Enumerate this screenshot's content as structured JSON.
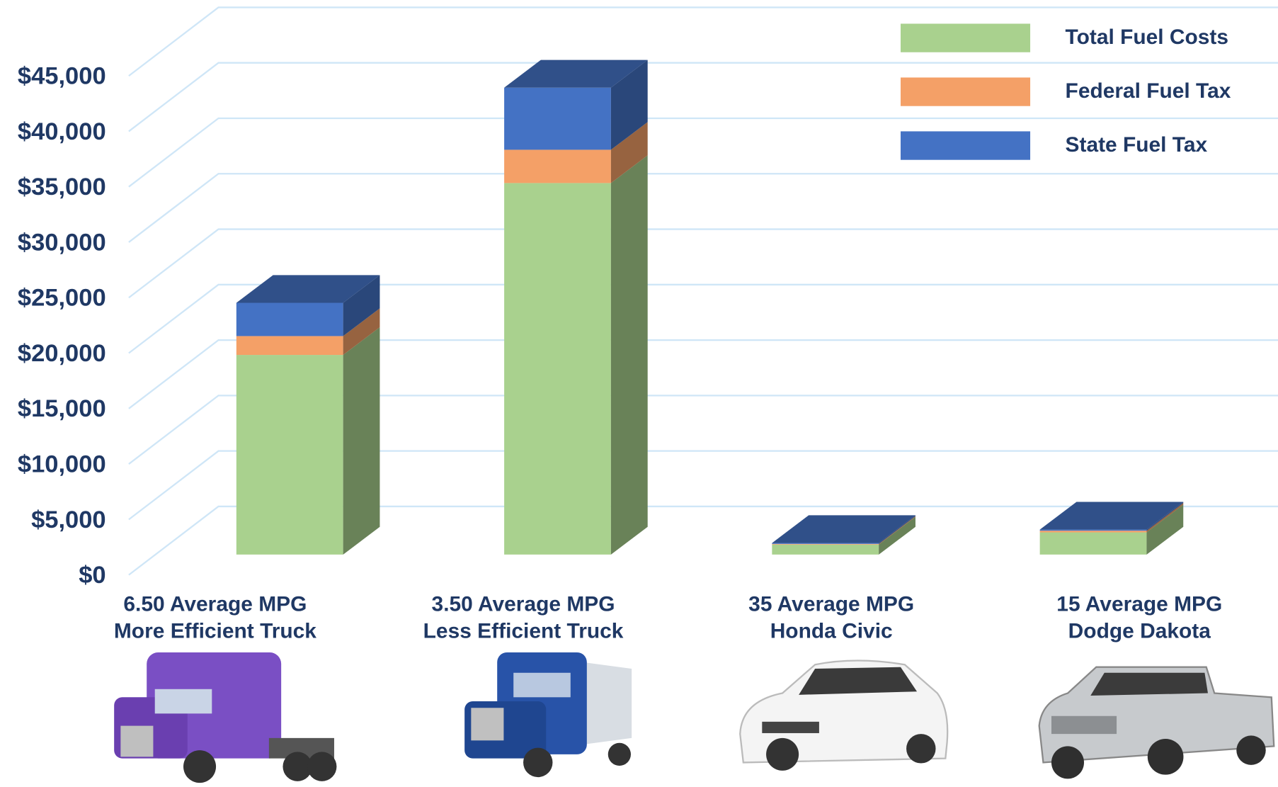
{
  "chart_data": {
    "type": "bar3d_stacked",
    "categories": [
      "6.50 Average MPG\nMore Efficient Truck",
      "3.50 Average MPG\nLess Efficient Truck",
      "35 Average MPG\nHonda Civic",
      "15 Average MPG\nDodge Dakota"
    ],
    "series": [
      {
        "name": "Total Fuel Costs",
        "color": "#a9d18e",
        "values": [
          18000,
          33500,
          900,
          2000
        ]
      },
      {
        "name": "Federal Fuel Tax",
        "color": "#f4a067",
        "values": [
          1700,
          3000,
          60,
          150
        ]
      },
      {
        "name": "State Fuel Tax",
        "color": "#4472c4",
        "values": [
          3000,
          5600,
          80,
          100
        ]
      }
    ],
    "ylim": [
      0,
      45000
    ],
    "yticks": [
      {
        "value": 0,
        "label": "$0"
      },
      {
        "value": 5000,
        "label": "$5,000"
      },
      {
        "value": 10000,
        "label": "$10,000"
      },
      {
        "value": 15000,
        "label": "$15,000"
      },
      {
        "value": 20000,
        "label": "$20,000"
      },
      {
        "value": 25000,
        "label": "$25,000"
      },
      {
        "value": 30000,
        "label": "$30,000"
      },
      {
        "value": 35000,
        "label": "$35,000"
      },
      {
        "value": 40000,
        "label": "$40,000"
      },
      {
        "value": 45000,
        "label": "$45,000"
      }
    ],
    "grid": true,
    "legend": "top-right"
  }
}
